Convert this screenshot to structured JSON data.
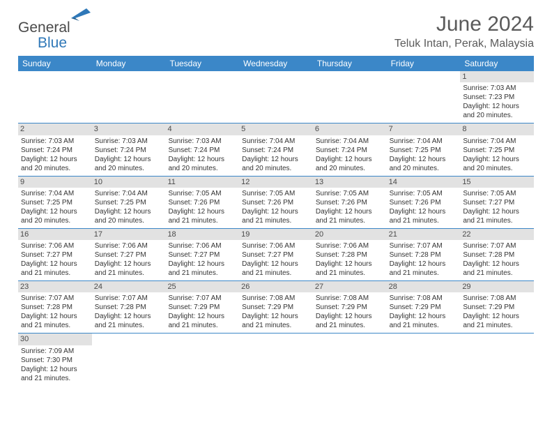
{
  "brand": {
    "part1": "General",
    "part2": "Blue",
    "logo_fill": "#2f78b8"
  },
  "title": "June 2024",
  "location": "Teluk Intan, Perak, Malaysia",
  "header_bg": "#3b87c8",
  "day_headers": [
    "Sunday",
    "Monday",
    "Tuesday",
    "Wednesday",
    "Thursday",
    "Friday",
    "Saturday"
  ],
  "weeks": [
    [
      null,
      null,
      null,
      null,
      null,
      null,
      {
        "n": "1",
        "sr": "7:03 AM",
        "ss": "7:23 PM",
        "dl": "12 hours and 20 minutes."
      }
    ],
    [
      {
        "n": "2",
        "sr": "7:03 AM",
        "ss": "7:24 PM",
        "dl": "12 hours and 20 minutes."
      },
      {
        "n": "3",
        "sr": "7:03 AM",
        "ss": "7:24 PM",
        "dl": "12 hours and 20 minutes."
      },
      {
        "n": "4",
        "sr": "7:03 AM",
        "ss": "7:24 PM",
        "dl": "12 hours and 20 minutes."
      },
      {
        "n": "5",
        "sr": "7:04 AM",
        "ss": "7:24 PM",
        "dl": "12 hours and 20 minutes."
      },
      {
        "n": "6",
        "sr": "7:04 AM",
        "ss": "7:24 PM",
        "dl": "12 hours and 20 minutes."
      },
      {
        "n": "7",
        "sr": "7:04 AM",
        "ss": "7:25 PM",
        "dl": "12 hours and 20 minutes."
      },
      {
        "n": "8",
        "sr": "7:04 AM",
        "ss": "7:25 PM",
        "dl": "12 hours and 20 minutes."
      }
    ],
    [
      {
        "n": "9",
        "sr": "7:04 AM",
        "ss": "7:25 PM",
        "dl": "12 hours and 20 minutes."
      },
      {
        "n": "10",
        "sr": "7:04 AM",
        "ss": "7:25 PM",
        "dl": "12 hours and 20 minutes."
      },
      {
        "n": "11",
        "sr": "7:05 AM",
        "ss": "7:26 PM",
        "dl": "12 hours and 21 minutes."
      },
      {
        "n": "12",
        "sr": "7:05 AM",
        "ss": "7:26 PM",
        "dl": "12 hours and 21 minutes."
      },
      {
        "n": "13",
        "sr": "7:05 AM",
        "ss": "7:26 PM",
        "dl": "12 hours and 21 minutes."
      },
      {
        "n": "14",
        "sr": "7:05 AM",
        "ss": "7:26 PM",
        "dl": "12 hours and 21 minutes."
      },
      {
        "n": "15",
        "sr": "7:05 AM",
        "ss": "7:27 PM",
        "dl": "12 hours and 21 minutes."
      }
    ],
    [
      {
        "n": "16",
        "sr": "7:06 AM",
        "ss": "7:27 PM",
        "dl": "12 hours and 21 minutes."
      },
      {
        "n": "17",
        "sr": "7:06 AM",
        "ss": "7:27 PM",
        "dl": "12 hours and 21 minutes."
      },
      {
        "n": "18",
        "sr": "7:06 AM",
        "ss": "7:27 PM",
        "dl": "12 hours and 21 minutes."
      },
      {
        "n": "19",
        "sr": "7:06 AM",
        "ss": "7:27 PM",
        "dl": "12 hours and 21 minutes."
      },
      {
        "n": "20",
        "sr": "7:06 AM",
        "ss": "7:28 PM",
        "dl": "12 hours and 21 minutes."
      },
      {
        "n": "21",
        "sr": "7:07 AM",
        "ss": "7:28 PM",
        "dl": "12 hours and 21 minutes."
      },
      {
        "n": "22",
        "sr": "7:07 AM",
        "ss": "7:28 PM",
        "dl": "12 hours and 21 minutes."
      }
    ],
    [
      {
        "n": "23",
        "sr": "7:07 AM",
        "ss": "7:28 PM",
        "dl": "12 hours and 21 minutes."
      },
      {
        "n": "24",
        "sr": "7:07 AM",
        "ss": "7:28 PM",
        "dl": "12 hours and 21 minutes."
      },
      {
        "n": "25",
        "sr": "7:07 AM",
        "ss": "7:29 PM",
        "dl": "12 hours and 21 minutes."
      },
      {
        "n": "26",
        "sr": "7:08 AM",
        "ss": "7:29 PM",
        "dl": "12 hours and 21 minutes."
      },
      {
        "n": "27",
        "sr": "7:08 AM",
        "ss": "7:29 PM",
        "dl": "12 hours and 21 minutes."
      },
      {
        "n": "28",
        "sr": "7:08 AM",
        "ss": "7:29 PM",
        "dl": "12 hours and 21 minutes."
      },
      {
        "n": "29",
        "sr": "7:08 AM",
        "ss": "7:29 PM",
        "dl": "12 hours and 21 minutes."
      }
    ],
    [
      {
        "n": "30",
        "sr": "7:09 AM",
        "ss": "7:30 PM",
        "dl": "12 hours and 21 minutes."
      },
      null,
      null,
      null,
      null,
      null,
      null
    ]
  ],
  "labels": {
    "sunrise": "Sunrise:",
    "sunset": "Sunset:",
    "daylight": "Daylight:"
  }
}
